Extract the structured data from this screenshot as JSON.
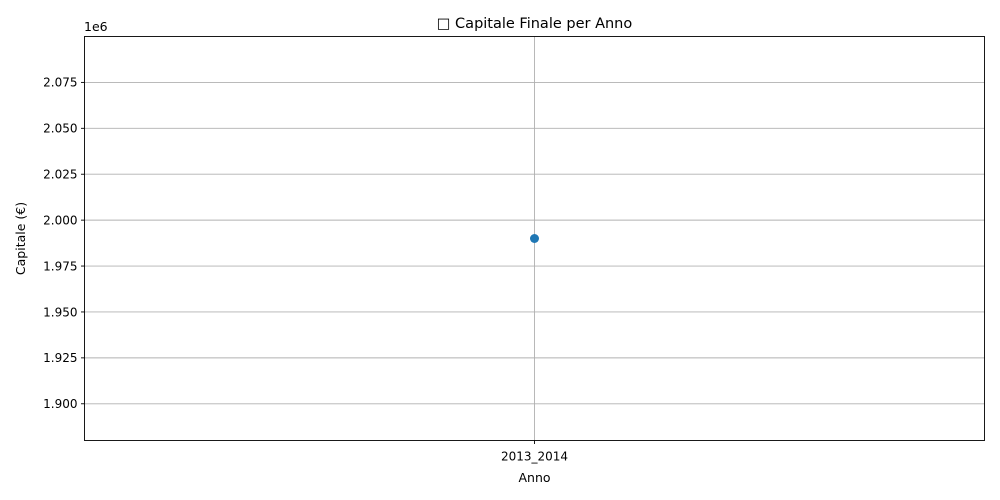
{
  "chart_data": {
    "type": "line",
    "title": "□ Capitale Finale per Anno",
    "xlabel": "Anno",
    "ylabel": "Capitale (€)",
    "y_offset_label": "1e6",
    "categories": [
      "2013_2014"
    ],
    "series": [
      {
        "values": [
          1990000
        ],
        "color": "#1f77b4",
        "marker": "circle"
      }
    ],
    "ylim": [
      1880000,
      2100000
    ],
    "yticks": [
      1900000,
      1925000,
      1950000,
      1975000,
      2000000,
      2025000,
      2050000,
      2075000
    ],
    "ytick_labels": [
      "1.900",
      "1.925",
      "1.950",
      "1.975",
      "2.000",
      "2.025",
      "2.050",
      "2.075"
    ],
    "grid": true
  }
}
